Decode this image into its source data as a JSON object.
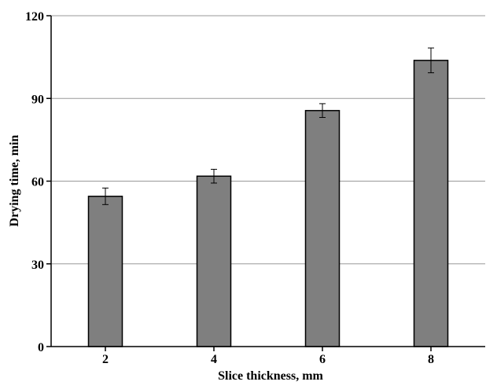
{
  "chart_data": {
    "type": "bar",
    "title": "",
    "xlabel": "Slice thickness, mm",
    "ylabel": "Drying time, min",
    "categories": [
      "2",
      "4",
      "6",
      "8"
    ],
    "values": [
      54.5,
      61.8,
      85.6,
      103.8
    ],
    "errors": [
      3.0,
      2.5,
      2.5,
      4.5
    ],
    "ylim": [
      0,
      120
    ],
    "yticks": [
      0,
      30,
      60,
      90,
      120
    ],
    "ytick_labels": [
      "0",
      "30",
      "60",
      "90",
      "120"
    ],
    "grid": "horizontal",
    "legend": "none",
    "colors": {
      "bar_fill": "#7f7f7f",
      "bar_stroke": "#000000",
      "gridline": "#999999",
      "axis": "#000000"
    }
  }
}
